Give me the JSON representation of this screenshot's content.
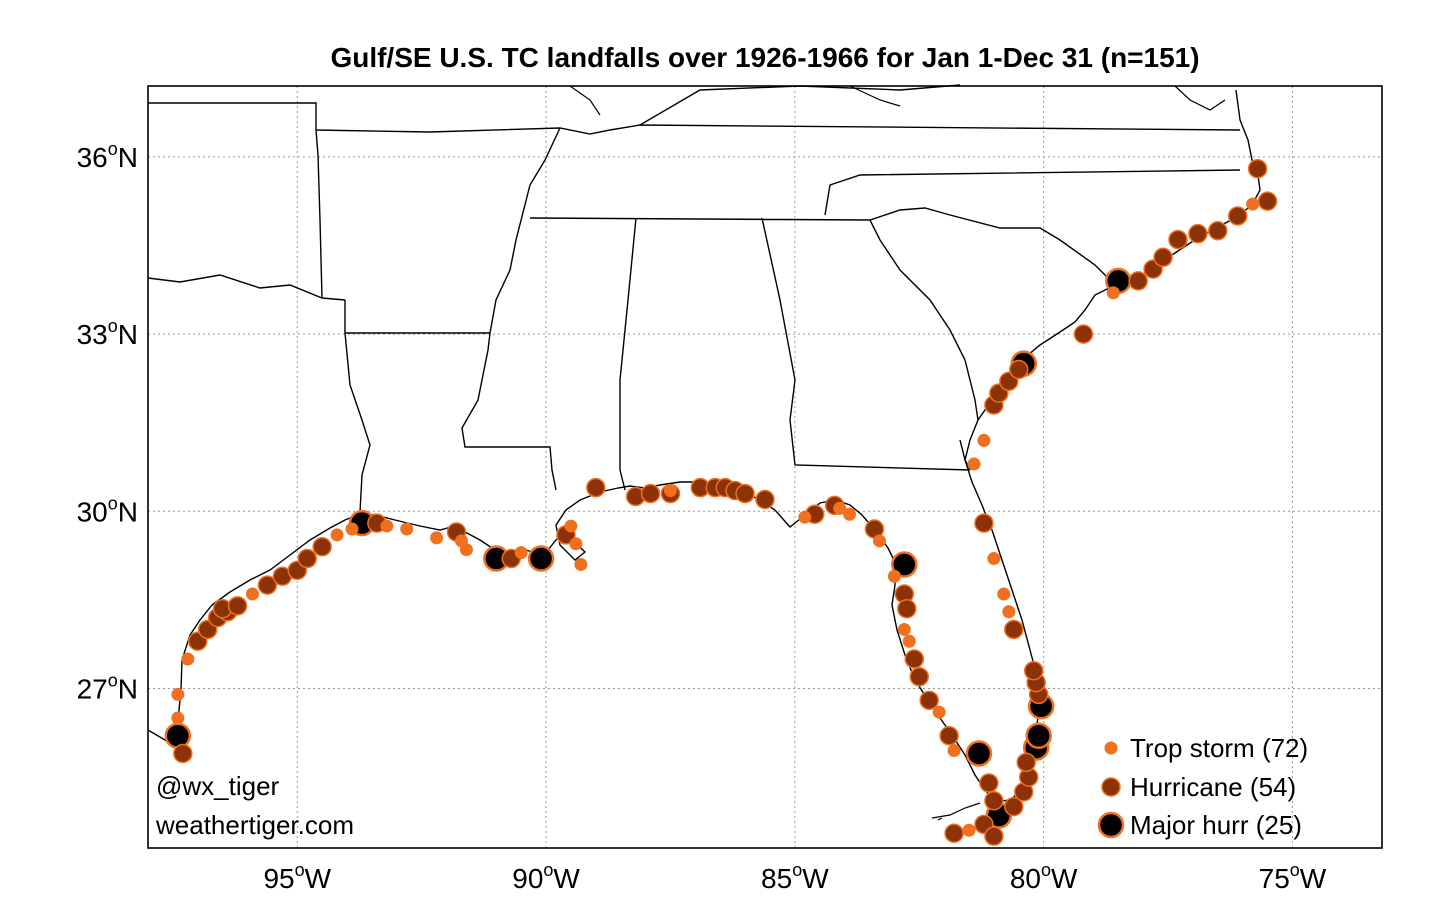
{
  "title": "Gulf/SE U.S. TC landfalls over 1926-1966 for Jan 1-Dec 31 (n=151)",
  "credits": [
    "@wx_tiger",
    "weathertiger.com"
  ],
  "colors": {
    "trop_storm_fill": "#f07020",
    "hurricane_fill": "#8b3208",
    "major_fill": "#000000",
    "marker_edge": "#f07020",
    "coast": "#000000",
    "grid": "#999999"
  },
  "axes": {
    "lon_range": [
      -98,
      -73.2
    ],
    "lat_range": [
      24.3,
      37.2
    ],
    "lon_ticks": [
      {
        "value": -95,
        "num": "95",
        "deg": "o",
        "hem": "W"
      },
      {
        "value": -90,
        "num": "90",
        "deg": "o",
        "hem": "W"
      },
      {
        "value": -85,
        "num": "85",
        "deg": "o",
        "hem": "W"
      },
      {
        "value": -80,
        "num": "80",
        "deg": "o",
        "hem": "W"
      },
      {
        "value": -75,
        "num": "75",
        "deg": "o",
        "hem": "W"
      }
    ],
    "lat_ticks": [
      {
        "value": 36,
        "num": "36",
        "deg": "o",
        "hem": "N"
      },
      {
        "value": 33,
        "num": "33",
        "deg": "o",
        "hem": "N"
      },
      {
        "value": 30,
        "num": "30",
        "deg": "o",
        "hem": "N"
      },
      {
        "value": 27,
        "num": "27",
        "deg": "o",
        "hem": "N"
      }
    ],
    "grid": true
  },
  "legend": {
    "placement": "bottom-right",
    "items": [
      {
        "category": "ts",
        "label": "Trop storm (72)"
      },
      {
        "category": "h",
        "label": "Hurricane (54)"
      },
      {
        "category": "mh",
        "label": "Major hurr (25)"
      }
    ]
  },
  "landfalls": [
    {
      "lon": -97.4,
      "lat": 26.2,
      "cat": "mh"
    },
    {
      "lon": -97.3,
      "lat": 25.9,
      "cat": "h"
    },
    {
      "lon": -97.4,
      "lat": 26.5,
      "cat": "ts"
    },
    {
      "lon": -97.4,
      "lat": 26.9,
      "cat": "ts"
    },
    {
      "lon": -97.2,
      "lat": 27.5,
      "cat": "ts"
    },
    {
      "lon": -97.0,
      "lat": 27.8,
      "cat": "h"
    },
    {
      "lon": -96.8,
      "lat": 28.0,
      "cat": "h"
    },
    {
      "lon": -96.6,
      "lat": 28.2,
      "cat": "h"
    },
    {
      "lon": -96.4,
      "lat": 28.3,
      "cat": "h"
    },
    {
      "lon": -96.5,
      "lat": 28.35,
      "cat": "h"
    },
    {
      "lon": -96.2,
      "lat": 28.4,
      "cat": "h"
    },
    {
      "lon": -95.9,
      "lat": 28.6,
      "cat": "ts"
    },
    {
      "lon": -95.6,
      "lat": 28.75,
      "cat": "h"
    },
    {
      "lon": -95.3,
      "lat": 28.9,
      "cat": "h"
    },
    {
      "lon": -95.0,
      "lat": 29.0,
      "cat": "h"
    },
    {
      "lon": -94.8,
      "lat": 29.2,
      "cat": "h"
    },
    {
      "lon": -94.5,
      "lat": 29.4,
      "cat": "h"
    },
    {
      "lon": -94.2,
      "lat": 29.6,
      "cat": "ts"
    },
    {
      "lon": -93.9,
      "lat": 29.7,
      "cat": "ts"
    },
    {
      "lon": -93.7,
      "lat": 29.8,
      "cat": "mh"
    },
    {
      "lon": -93.4,
      "lat": 29.8,
      "cat": "h"
    },
    {
      "lon": -93.2,
      "lat": 29.75,
      "cat": "ts"
    },
    {
      "lon": -92.8,
      "lat": 29.7,
      "cat": "ts"
    },
    {
      "lon": -92.2,
      "lat": 29.55,
      "cat": "ts"
    },
    {
      "lon": -91.8,
      "lat": 29.65,
      "cat": "h"
    },
    {
      "lon": -91.7,
      "lat": 29.5,
      "cat": "ts"
    },
    {
      "lon": -91.6,
      "lat": 29.35,
      "cat": "ts"
    },
    {
      "lon": -91.0,
      "lat": 29.2,
      "cat": "mh"
    },
    {
      "lon": -90.7,
      "lat": 29.2,
      "cat": "h"
    },
    {
      "lon": -90.5,
      "lat": 29.3,
      "cat": "ts"
    },
    {
      "lon": -90.1,
      "lat": 29.2,
      "cat": "mh"
    },
    {
      "lon": -89.6,
      "lat": 29.6,
      "cat": "h"
    },
    {
      "lon": -89.5,
      "lat": 29.75,
      "cat": "ts"
    },
    {
      "lon": -89.4,
      "lat": 29.45,
      "cat": "ts"
    },
    {
      "lon": -89.3,
      "lat": 29.1,
      "cat": "ts"
    },
    {
      "lon": -89.0,
      "lat": 30.4,
      "cat": "h"
    },
    {
      "lon": -88.2,
      "lat": 30.25,
      "cat": "h"
    },
    {
      "lon": -87.9,
      "lat": 30.3,
      "cat": "h"
    },
    {
      "lon": -87.5,
      "lat": 30.3,
      "cat": "h"
    },
    {
      "lon": -87.5,
      "lat": 30.35,
      "cat": "ts"
    },
    {
      "lon": -86.9,
      "lat": 30.4,
      "cat": "h"
    },
    {
      "lon": -86.6,
      "lat": 30.4,
      "cat": "h"
    },
    {
      "lon": -86.4,
      "lat": 30.4,
      "cat": "h"
    },
    {
      "lon": -86.2,
      "lat": 30.35,
      "cat": "h"
    },
    {
      "lon": -86.0,
      "lat": 30.3,
      "cat": "h"
    },
    {
      "lon": -85.6,
      "lat": 30.2,
      "cat": "h"
    },
    {
      "lon": -84.8,
      "lat": 29.9,
      "cat": "ts"
    },
    {
      "lon": -84.6,
      "lat": 29.95,
      "cat": "h"
    },
    {
      "lon": -84.2,
      "lat": 30.1,
      "cat": "h"
    },
    {
      "lon": -84.1,
      "lat": 30.05,
      "cat": "ts"
    },
    {
      "lon": -83.9,
      "lat": 29.95,
      "cat": "ts"
    },
    {
      "lon": -83.4,
      "lat": 29.7,
      "cat": "h"
    },
    {
      "lon": -83.3,
      "lat": 29.5,
      "cat": "ts"
    },
    {
      "lon": -82.8,
      "lat": 29.1,
      "cat": "mh"
    },
    {
      "lon": -83.0,
      "lat": 28.9,
      "cat": "ts"
    },
    {
      "lon": -82.8,
      "lat": 28.6,
      "cat": "h"
    },
    {
      "lon": -82.75,
      "lat": 28.35,
      "cat": "h"
    },
    {
      "lon": -82.8,
      "lat": 28.0,
      "cat": "ts"
    },
    {
      "lon": -82.7,
      "lat": 27.8,
      "cat": "ts"
    },
    {
      "lon": -82.6,
      "lat": 27.5,
      "cat": "h"
    },
    {
      "lon": -82.5,
      "lat": 27.2,
      "cat": "h"
    },
    {
      "lon": -82.3,
      "lat": 26.8,
      "cat": "h"
    },
    {
      "lon": -82.1,
      "lat": 26.6,
      "cat": "ts"
    },
    {
      "lon": -81.9,
      "lat": 26.2,
      "cat": "h"
    },
    {
      "lon": -81.8,
      "lat": 25.95,
      "cat": "ts"
    },
    {
      "lon": -81.3,
      "lat": 25.9,
      "cat": "mh"
    },
    {
      "lon": -81.1,
      "lat": 25.4,
      "cat": "h"
    },
    {
      "lon": -81.0,
      "lat": 25.1,
      "cat": "h"
    },
    {
      "lon": -80.9,
      "lat": 24.85,
      "cat": "mh"
    },
    {
      "lon": -81.2,
      "lat": 24.7,
      "cat": "h"
    },
    {
      "lon": -81.5,
      "lat": 24.6,
      "cat": "ts"
    },
    {
      "lon": -81.8,
      "lat": 24.55,
      "cat": "h"
    },
    {
      "lon": -81.0,
      "lat": 24.5,
      "cat": "h"
    },
    {
      "lon": -80.6,
      "lat": 25.0,
      "cat": "h"
    },
    {
      "lon": -80.4,
      "lat": 25.25,
      "cat": "h"
    },
    {
      "lon": -80.3,
      "lat": 25.5,
      "cat": "h"
    },
    {
      "lon": -80.35,
      "lat": 25.75,
      "cat": "h"
    },
    {
      "lon": -80.15,
      "lat": 26.0,
      "cat": "mh"
    },
    {
      "lon": -80.1,
      "lat": 26.2,
      "cat": "mh"
    },
    {
      "lon": -80.05,
      "lat": 26.7,
      "cat": "mh"
    },
    {
      "lon": -80.1,
      "lat": 26.9,
      "cat": "h"
    },
    {
      "lon": -80.15,
      "lat": 27.1,
      "cat": "h"
    },
    {
      "lon": -80.2,
      "lat": 27.3,
      "cat": "h"
    },
    {
      "lon": -80.6,
      "lat": 28.0,
      "cat": "h"
    },
    {
      "lon": -80.7,
      "lat": 28.3,
      "cat": "ts"
    },
    {
      "lon": -80.8,
      "lat": 28.6,
      "cat": "ts"
    },
    {
      "lon": -81.0,
      "lat": 29.2,
      "cat": "ts"
    },
    {
      "lon": -81.2,
      "lat": 29.8,
      "cat": "h"
    },
    {
      "lon": -81.4,
      "lat": 30.8,
      "cat": "ts"
    },
    {
      "lon": -81.2,
      "lat": 31.2,
      "cat": "ts"
    },
    {
      "lon": -81.0,
      "lat": 31.8,
      "cat": "h"
    },
    {
      "lon": -80.9,
      "lat": 32.0,
      "cat": "h"
    },
    {
      "lon": -80.7,
      "lat": 32.2,
      "cat": "h"
    },
    {
      "lon": -80.5,
      "lat": 32.4,
      "cat": "h"
    },
    {
      "lon": -80.4,
      "lat": 32.5,
      "cat": "mh"
    },
    {
      "lon": -79.2,
      "lat": 33.0,
      "cat": "h"
    },
    {
      "lon": -78.6,
      "lat": 33.7,
      "cat": "ts"
    },
    {
      "lon": -78.5,
      "lat": 33.9,
      "cat": "mh"
    },
    {
      "lon": -78.1,
      "lat": 33.9,
      "cat": "h"
    },
    {
      "lon": -77.8,
      "lat": 34.1,
      "cat": "h"
    },
    {
      "lon": -77.6,
      "lat": 34.3,
      "cat": "h"
    },
    {
      "lon": -77.3,
      "lat": 34.6,
      "cat": "h"
    },
    {
      "lon": -76.9,
      "lat": 34.7,
      "cat": "h"
    },
    {
      "lon": -76.5,
      "lat": 34.75,
      "cat": "h"
    },
    {
      "lon": -76.1,
      "lat": 35.0,
      "cat": "h"
    },
    {
      "lon": -75.8,
      "lat": 35.2,
      "cat": "ts"
    },
    {
      "lon": -75.5,
      "lat": 35.25,
      "cat": "h"
    },
    {
      "lon": -75.7,
      "lat": 35.8,
      "cat": "h"
    }
  ]
}
